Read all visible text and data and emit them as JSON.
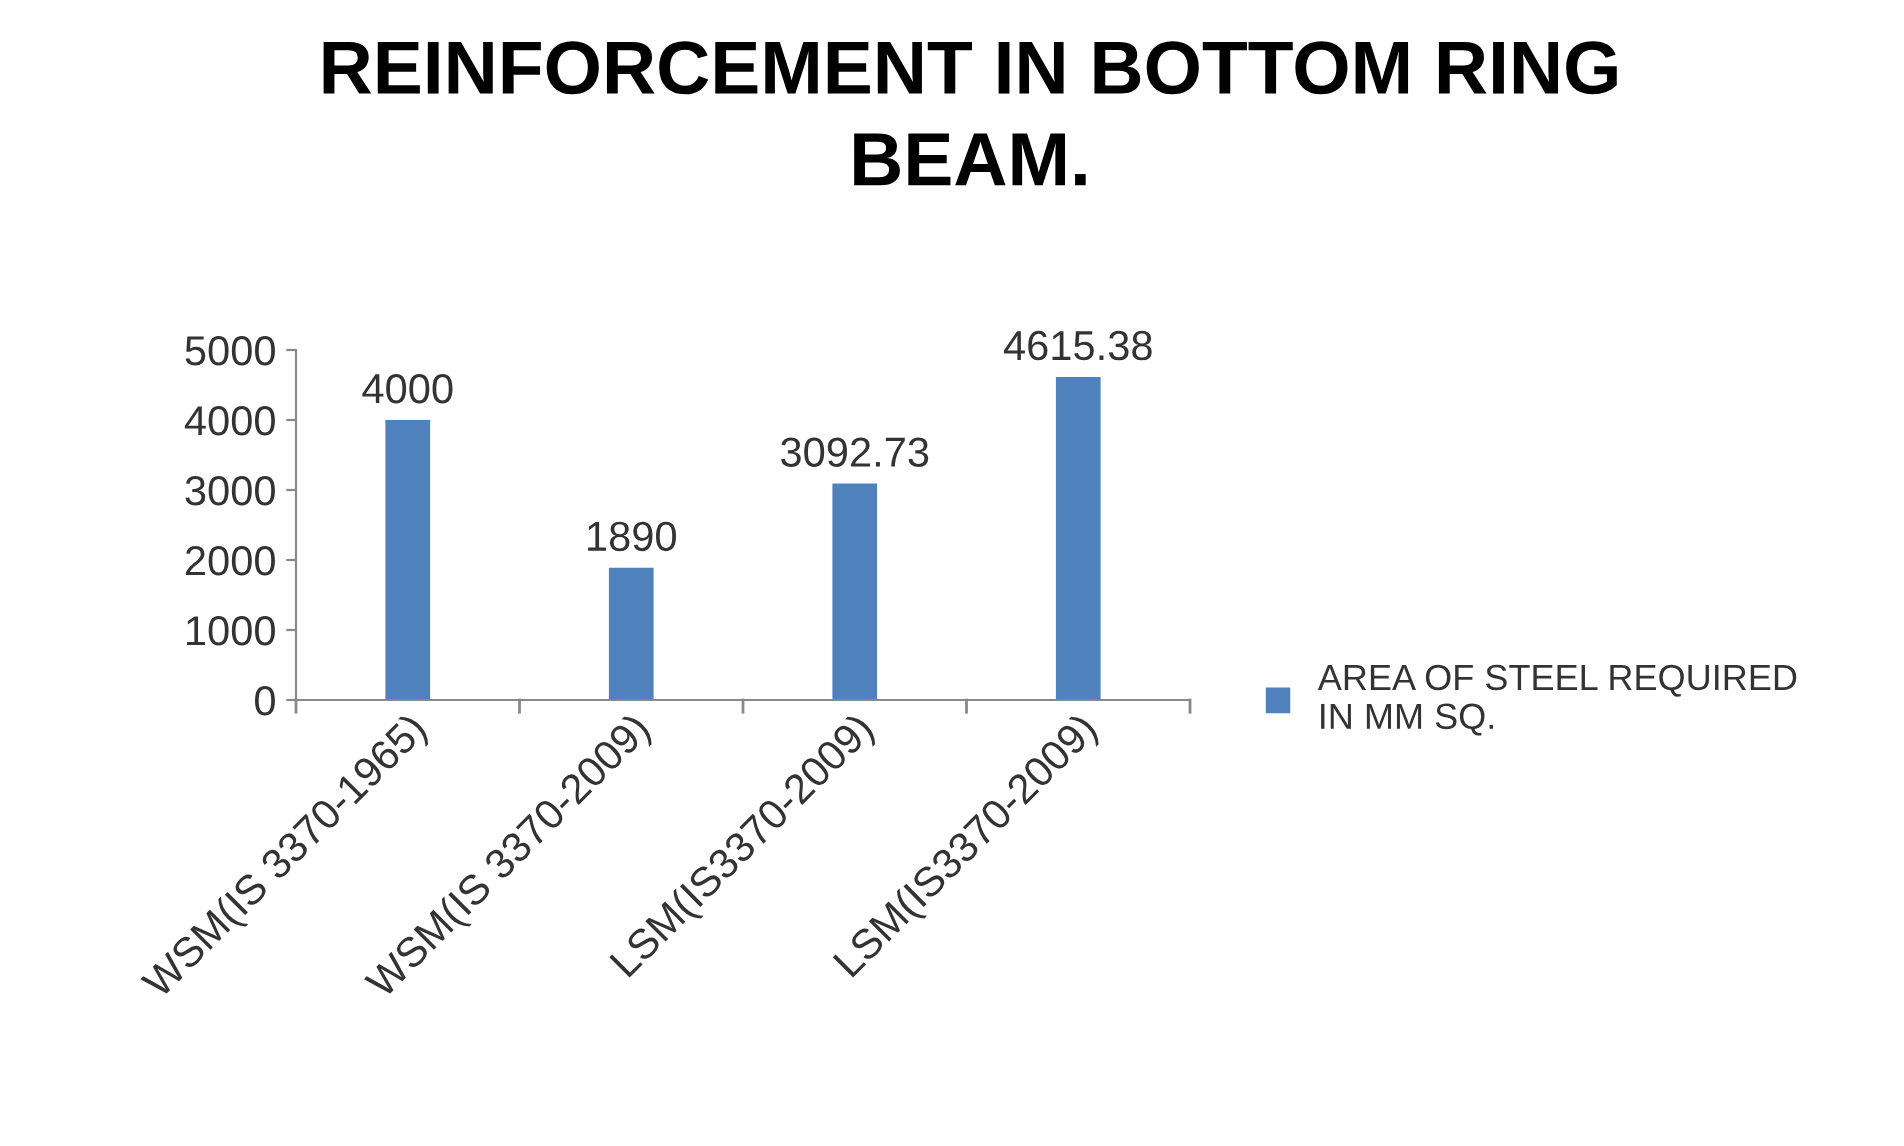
{
  "chart_data": {
    "type": "bar",
    "title": "REINFORCEMENT IN BOTTOM RING BEAM.",
    "categories": [
      "WSM(IS 3370-1965)",
      "WSM(IS 3370-2009)",
      "LSM(IS3370-2009)",
      "LSM(IS3370-2009)"
    ],
    "series": [
      {
        "name": "AREA OF STEEL REQUIRED IN MM SQ.",
        "color": "#4f81bd",
        "values": [
          4000,
          1890,
          3092.73,
          4615.38
        ]
      }
    ],
    "ylim": [
      0,
      5000
    ],
    "yticks": [
      0,
      1000,
      2000,
      3000,
      4000,
      5000
    ],
    "data_labels": true,
    "grid": false,
    "legend": "right"
  }
}
